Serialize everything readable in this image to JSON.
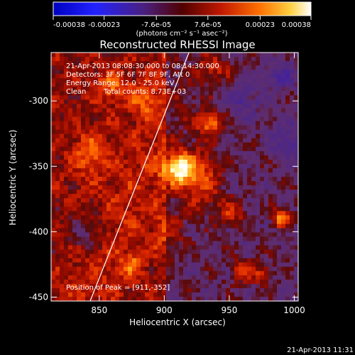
{
  "chart_data": {
    "type": "heatmap",
    "title": "Reconstructed RHESSI Image",
    "xlabel": "Heliocentric X (arcsec)",
    "ylabel": "Heliocentric Y (arcsec)",
    "xlim": [
      813,
      1003
    ],
    "ylim": [
      -453,
      -263
    ],
    "x_ticks": [
      850,
      900,
      950,
      1000
    ],
    "y_ticks": [
      -300,
      -350,
      -400,
      -450
    ],
    "colorbar": {
      "ticks": [
        -0.00038,
        -0.00023,
        -7.6e-05,
        7.6e-05,
        0.00023,
        0.00038
      ],
      "tick_labels": [
        "-0.00038",
        "-0.00023",
        "-7.6e-05",
        "7.6e-05",
        "0.00023",
        "0.00038"
      ],
      "range": [
        -0.00038,
        0.00038
      ],
      "units_label": "(photons cm⁻² s⁻¹ asec⁻²)",
      "colormap": [
        "#000080",
        "#2020ff",
        "#5a2080",
        "#800000",
        "#e02000",
        "#ff8000",
        "#ffe060",
        "#ffffff"
      ]
    },
    "annotations": {
      "time_range": "21-Apr-2013 08:08:30.000 to 08:14:30.000",
      "detectors": "Detectors: 3F 5F 6F 7F 8F 9F, Att 0",
      "energy_range": "Energy Range: 12.0 - 25.0 keV",
      "algorithm": "Clean",
      "total_counts": "Total counts: 8.73E+03",
      "peak": "Position of Peak = [911,-352]"
    },
    "peak_position": [
      911,
      -352
    ],
    "limb_line": [
      [
        843,
        -453
      ],
      [
        919,
        -263
      ]
    ],
    "sources": [
      {
        "x": 911,
        "y": -352,
        "amp": 0.00038,
        "sx": 8,
        "sy": 9
      },
      {
        "x": 935,
        "y": -317,
        "amp": 0.00026,
        "sx": 7,
        "sy": 6
      },
      {
        "x": 928,
        "y": -360,
        "amp": 0.0002,
        "sx": 11,
        "sy": 16
      },
      {
        "x": 952,
        "y": -385,
        "amp": 0.00016,
        "sx": 7,
        "sy": 7
      },
      {
        "x": 990,
        "y": -390,
        "amp": 0.00026,
        "sx": 5,
        "sy": 5
      },
      {
        "x": 960,
        "y": -430,
        "amp": 0.00018,
        "sx": 6,
        "sy": 6
      },
      {
        "x": 975,
        "y": -432,
        "amp": 0.00014,
        "sx": 6,
        "sy": 6
      },
      {
        "x": 860,
        "y": -290,
        "amp": 0.00015,
        "sx": 9,
        "sy": 7
      },
      {
        "x": 843,
        "y": -340,
        "amp": 0.00014,
        "sx": 9,
        "sy": 11
      },
      {
        "x": 885,
        "y": -300,
        "amp": 0.00012,
        "sx": 8,
        "sy": 8
      },
      {
        "x": 875,
        "y": -425,
        "amp": 0.00012,
        "sx": 7,
        "sy": 6
      },
      {
        "x": 940,
        "y": -275,
        "amp": 0.00013,
        "sx": 8,
        "sy": 6
      },
      {
        "x": 905,
        "y": -400,
        "amp": 0.00011,
        "sx": 8,
        "sy": 12
      },
      {
        "x": 995,
        "y": -330,
        "amp": -0.00012,
        "sx": 9,
        "sy": 9
      },
      {
        "x": 960,
        "y": -300,
        "amp": -0.00011,
        "sx": 9,
        "sy": 9
      },
      {
        "x": 840,
        "y": -400,
        "amp": -0.00013,
        "sx": 10,
        "sy": 10
      },
      {
        "x": 990,
        "y": -280,
        "amp": -0.00012,
        "sx": 9,
        "sy": 8
      }
    ]
  },
  "footer_date": "21-Apr-2013 11:31"
}
